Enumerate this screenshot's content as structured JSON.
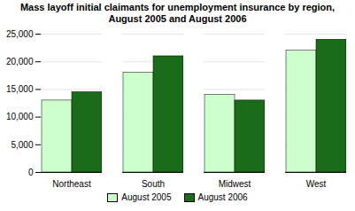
{
  "chart_data": {
    "type": "bar",
    "title": "Mass layoff initial claimants for unemployment insurance by region,\nAugust 2005 and August 2006",
    "categories": [
      "Northeast",
      "South",
      "Midwest",
      "West"
    ],
    "series": [
      {
        "name": "August 2005",
        "color": "#ccffcc",
        "values": [
          13000,
          18000,
          14000,
          22000
        ]
      },
      {
        "name": "August 2006",
        "color": "#1a6b1a",
        "values": [
          14500,
          21000,
          13000,
          24000
        ]
      }
    ],
    "ylim": [
      0,
      25000
    ],
    "yticks": [
      0,
      {
        "value": 5000,
        "label": "5,000"
      },
      {
        "value": 10000,
        "label": "10,000"
      },
      {
        "value": 15000,
        "label": "15,000"
      },
      {
        "value": 20000,
        "label": "20,000"
      },
      {
        "value": 25000,
        "label": "25,000"
      }
    ],
    "grid": true,
    "legend": "bottom"
  }
}
